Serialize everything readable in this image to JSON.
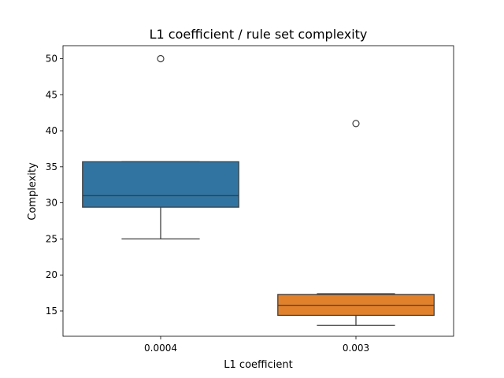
{
  "chart_data": {
    "type": "boxplot",
    "title": "L1 coefficient / rule set complexity",
    "xlabel": "L1 coefficient",
    "ylabel": "Complexity",
    "categories": [
      "0.0004",
      "0.003"
    ],
    "ylim": [
      11.5,
      51.8
    ],
    "yticks": [
      15,
      20,
      25,
      30,
      35,
      40,
      45,
      50
    ],
    "grid": false,
    "boxes": [
      {
        "category": "0.0004",
        "whisker_low": 25,
        "q1": 29.4,
        "median": 31,
        "q3": 35.7,
        "whisker_high": 35.7,
        "outliers": [
          50
        ],
        "color": "#3274a1"
      },
      {
        "category": "0.003",
        "whisker_low": 13,
        "q1": 14.4,
        "median": 15.8,
        "q3": 17.3,
        "whisker_high": 17.4,
        "outliers": [
          41
        ],
        "color": "#e1812c"
      }
    ]
  }
}
